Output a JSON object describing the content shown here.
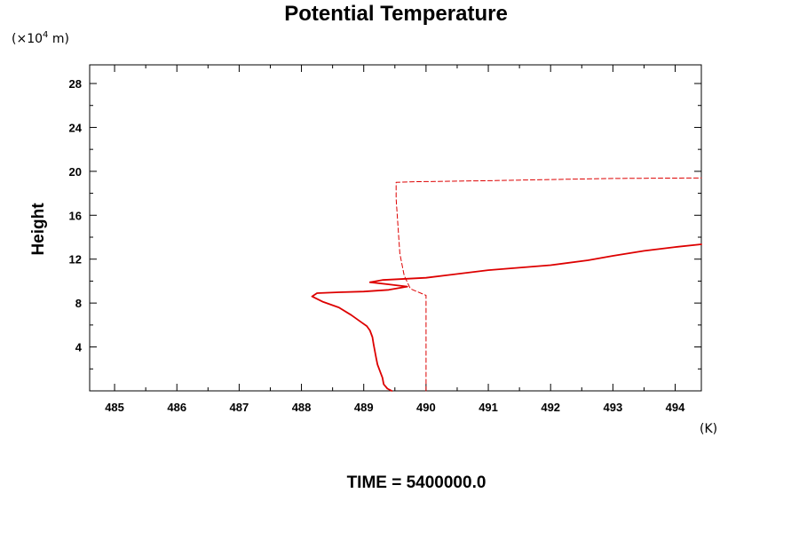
{
  "chart_data": {
    "type": "line",
    "title": "Potential Temperature",
    "ylabel": "Height",
    "y_unit_prefix": "(×10",
    "y_unit_exp": "4",
    "y_unit_suffix": " m)",
    "x_unit": "(K)",
    "footer": "TIME = 5400000.0",
    "xlim": [
      484.6,
      494.42
    ],
    "ylim": [
      0,
      29.7
    ],
    "x_ticks": [
      485,
      486,
      487,
      488,
      489,
      490,
      491,
      492,
      493,
      494
    ],
    "x_tick_labels": [
      "485",
      "486",
      "487",
      "488",
      "489",
      "490",
      "491",
      "492",
      "493",
      "494"
    ],
    "y_ticks": [
      4,
      8,
      12,
      16,
      20,
      24,
      28
    ],
    "y_tick_labels": [
      "4",
      "8",
      "12",
      "16",
      "20",
      "24",
      "28"
    ],
    "x_minor_step": 0.5,
    "y_minor_step": 2,
    "grid": false,
    "colors": {
      "series": "#dd0000",
      "axis": "#000000"
    },
    "series": [
      {
        "style": "solid",
        "points": [
          [
            489.45,
            0.0
          ],
          [
            489.38,
            0.2
          ],
          [
            489.32,
            0.6
          ],
          [
            489.3,
            1.2
          ],
          [
            489.26,
            1.8
          ],
          [
            489.22,
            2.4
          ],
          [
            489.2,
            3.0
          ],
          [
            489.18,
            3.6
          ],
          [
            489.16,
            4.2
          ],
          [
            489.14,
            4.9
          ],
          [
            489.1,
            5.5
          ],
          [
            489.05,
            5.9
          ],
          [
            488.95,
            6.3
          ],
          [
            488.8,
            6.9
          ],
          [
            488.6,
            7.6
          ],
          [
            488.35,
            8.1
          ],
          [
            488.17,
            8.6
          ],
          [
            488.25,
            8.9
          ],
          [
            488.6,
            8.98
          ],
          [
            489.0,
            9.05
          ],
          [
            489.4,
            9.2
          ],
          [
            489.7,
            9.5
          ],
          [
            489.4,
            9.7
          ],
          [
            489.1,
            9.9
          ],
          [
            489.3,
            10.1
          ],
          [
            490.0,
            10.3
          ],
          [
            491.0,
            11.0
          ],
          [
            492.0,
            11.45
          ],
          [
            492.6,
            11.9
          ],
          [
            493.0,
            12.3
          ],
          [
            493.5,
            12.75
          ],
          [
            494.0,
            13.1
          ],
          [
            494.42,
            13.35
          ]
        ]
      },
      {
        "style": "dashed",
        "points": [
          [
            490.0,
            0.0
          ],
          [
            490.0,
            8.7
          ],
          [
            489.75,
            9.3
          ],
          [
            489.65,
            10.5
          ],
          [
            489.58,
            12.5
          ],
          [
            489.55,
            15.0
          ],
          [
            489.52,
            17.5
          ],
          [
            489.52,
            19.0
          ],
          [
            489.8,
            19.05
          ],
          [
            491.0,
            19.15
          ],
          [
            492.0,
            19.25
          ],
          [
            493.0,
            19.35
          ],
          [
            494.42,
            19.4
          ]
        ]
      }
    ]
  }
}
